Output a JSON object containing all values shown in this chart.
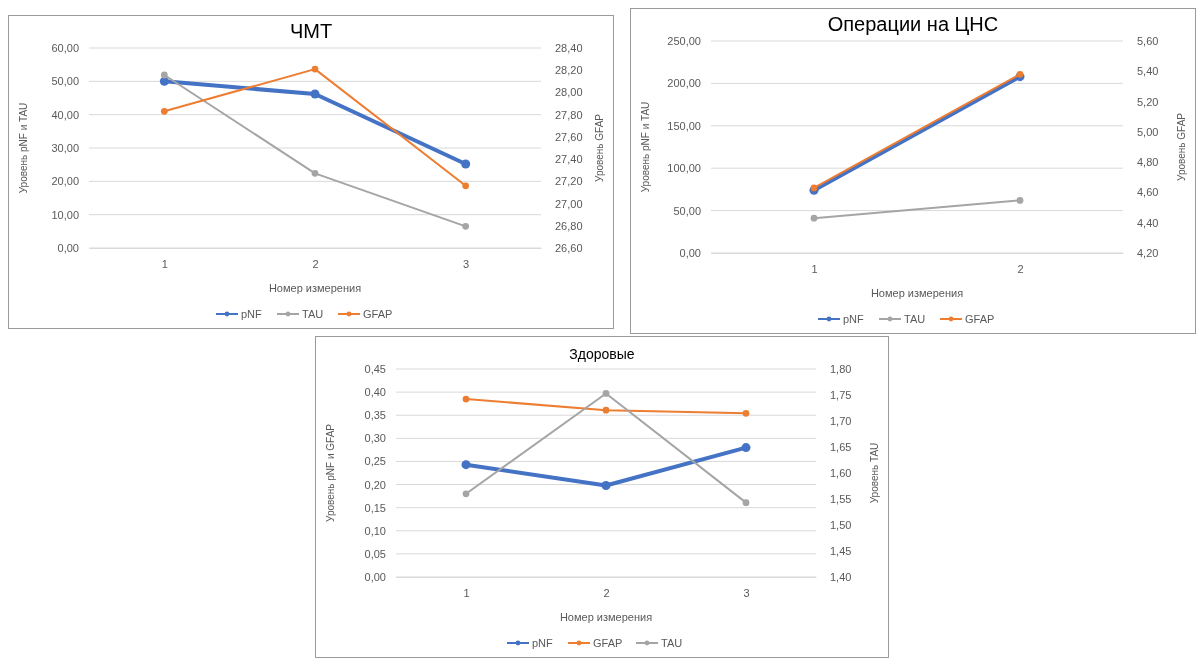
{
  "chart_data": [
    {
      "type": "line",
      "title": "ЧМТ",
      "xlabel": "Номер измерения",
      "ylabel": "Уровень pNF и TAU",
      "y2label": "Уровень GFAP",
      "categories": [
        "1",
        "2",
        "3"
      ],
      "series": [
        {
          "name": "pNF",
          "color": "#4472c4",
          "values": [
            50.0,
            46.2,
            25.2
          ]
        },
        {
          "name": "TAU",
          "color": "#a5a5a5",
          "values": [
            51.9,
            22.4,
            6.5
          ]
        },
        {
          "name": "GFAP",
          "color": "#ed7d31",
          "axis": "y2",
          "values": [
            27.83,
            28.21,
            27.16
          ]
        }
      ],
      "ylim": [
        0,
        60
      ],
      "yticks": [
        {
          "value": 0,
          "label": "0,00"
        },
        {
          "value": 10,
          "label": "10,00"
        },
        {
          "value": 20,
          "label": "20,00"
        },
        {
          "value": 30,
          "label": "30,00"
        },
        {
          "value": 40,
          "label": "40,00"
        },
        {
          "value": 50,
          "label": "50,00"
        },
        {
          "value": 60,
          "label": "60,00"
        }
      ],
      "y2lim": [
        26.6,
        28.4
      ],
      "y2ticks": [
        {
          "value": 26.6,
          "label": "26,60"
        },
        {
          "value": 26.8,
          "label": "26,80"
        },
        {
          "value": 27.0,
          "label": "27,00"
        },
        {
          "value": 27.2,
          "label": "27,20"
        },
        {
          "value": 27.4,
          "label": "27,40"
        },
        {
          "value": 27.6,
          "label": "27,60"
        },
        {
          "value": 27.8,
          "label": "27,80"
        },
        {
          "value": 28.0,
          "label": "28,00"
        },
        {
          "value": 28.2,
          "label": "28,20"
        },
        {
          "value": 28.4,
          "label": "28,40"
        }
      ],
      "grid": "y",
      "legend": "bottom",
      "marker": "circle"
    },
    {
      "type": "line",
      "title": "Операции на ЦНС",
      "xlabel": "Номер измерения",
      "ylabel": "Уровень pNF и TAU",
      "y2label": "Уровень GFAP",
      "categories": [
        "1",
        "2"
      ],
      "series": [
        {
          "name": "pNF",
          "color": "#4472c4",
          "values": [
            74,
            208
          ]
        },
        {
          "name": "TAU",
          "color": "#a5a5a5",
          "values": [
            41,
            62
          ]
        },
        {
          "name": "GFAP",
          "color": "#ed7d31",
          "axis": "y2",
          "values": [
            4.63,
            5.38
          ]
        }
      ],
      "ylim": [
        0,
        250
      ],
      "yticks": [
        {
          "value": 0,
          "label": "0,00"
        },
        {
          "value": 50,
          "label": "50,00"
        },
        {
          "value": 100,
          "label": "100,00"
        },
        {
          "value": 150,
          "label": "150,00"
        },
        {
          "value": 200,
          "label": "200,00"
        },
        {
          "value": 250,
          "label": "250,00"
        }
      ],
      "y2lim": [
        4.2,
        5.6
      ],
      "y2ticks": [
        {
          "value": 4.2,
          "label": "4,20"
        },
        {
          "value": 4.4,
          "label": "4,40"
        },
        {
          "value": 4.6,
          "label": "4,60"
        },
        {
          "value": 4.8,
          "label": "4,80"
        },
        {
          "value": 5.0,
          "label": "5,00"
        },
        {
          "value": 5.2,
          "label": "5,20"
        },
        {
          "value": 5.4,
          "label": "5,40"
        },
        {
          "value": 5.6,
          "label": "5,60"
        }
      ],
      "grid": "y",
      "legend": "bottom",
      "marker": "circle"
    },
    {
      "type": "line",
      "title": "Здоровые",
      "xlabel": "Номер измерения",
      "ylabel": "Уровень pNF и GFAP",
      "y2label": "Уровень TAU",
      "categories": [
        "1",
        "2",
        "3"
      ],
      "series": [
        {
          "name": "pNF",
          "color": "#4472c4",
          "values": [
            0.243,
            0.198,
            0.28
          ]
        },
        {
          "name": "GFAP",
          "color": "#ed7d31",
          "values": [
            0.385,
            0.361,
            0.354
          ]
        },
        {
          "name": "TAU",
          "color": "#a5a5a5",
          "axis": "y2",
          "values": [
            1.56,
            1.753,
            1.543
          ]
        }
      ],
      "ylim": [
        0,
        0.45
      ],
      "yticks": [
        {
          "value": 0,
          "label": "0,00"
        },
        {
          "value": 0.05,
          "label": "0,05"
        },
        {
          "value": 0.1,
          "label": "0,10"
        },
        {
          "value": 0.15,
          "label": "0,15"
        },
        {
          "value": 0.2,
          "label": "0,20"
        },
        {
          "value": 0.25,
          "label": "0,25"
        },
        {
          "value": 0.3,
          "label": "0,30"
        },
        {
          "value": 0.35,
          "label": "0,35"
        },
        {
          "value": 0.4,
          "label": "0,40"
        },
        {
          "value": 0.45,
          "label": "0,45"
        }
      ],
      "y2lim": [
        1.4,
        1.8
      ],
      "y2ticks": [
        {
          "value": 1.4,
          "label": "1,40"
        },
        {
          "value": 1.45,
          "label": "1,45"
        },
        {
          "value": 1.5,
          "label": "1,50"
        },
        {
          "value": 1.55,
          "label": "1,55"
        },
        {
          "value": 1.6,
          "label": "1,60"
        },
        {
          "value": 1.65,
          "label": "1,65"
        },
        {
          "value": 1.7,
          "label": "1,70"
        },
        {
          "value": 1.75,
          "label": "1,75"
        },
        {
          "value": 1.8,
          "label": "1,80"
        }
      ],
      "grid": "y",
      "legend": "bottom",
      "marker": "circle"
    }
  ]
}
